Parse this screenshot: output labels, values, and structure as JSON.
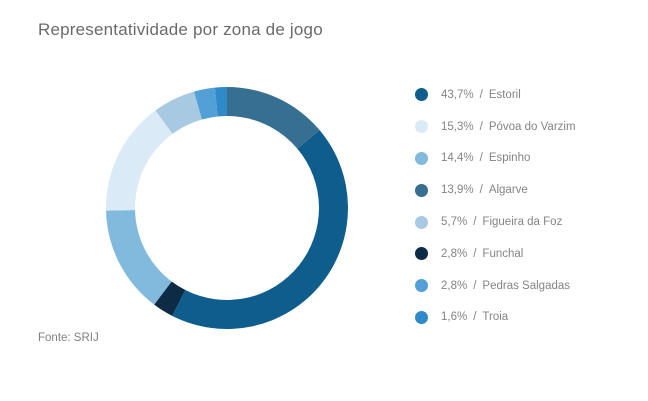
{
  "page": {
    "title": "Representatividade por zona de jogo",
    "source": "Fonte: SRIJ"
  },
  "chart_data": {
    "type": "pie",
    "subtype": "donut",
    "title": "Representatividade por zona de jogo",
    "unit": "%",
    "separator": "/",
    "legend_position": "right",
    "donut_hole_ratio": 0.76,
    "slices": [
      {
        "label": "Estoril",
        "value": 43.7,
        "pct_label": "43,7%",
        "color": "#0E5D8C"
      },
      {
        "label": "Póvoa do Varzim",
        "value": 15.3,
        "pct_label": "15,3%",
        "color": "#DAEBF7"
      },
      {
        "label": "Espinho",
        "value": 14.4,
        "pct_label": "14,4%",
        "color": "#82BADE"
      },
      {
        "label": "Algarve",
        "value": 13.9,
        "pct_label": "13,9%",
        "color": "#366F91"
      },
      {
        "label": "Figueira da Foz",
        "value": 5.7,
        "pct_label": "5,7%",
        "color": "#A8C9E2"
      },
      {
        "label": "Funchal",
        "value": 2.8,
        "pct_label": "2,8%",
        "color": "#0D2B45"
      },
      {
        "label": "Pedras Salgadas",
        "value": 2.8,
        "pct_label": "2,8%",
        "color": "#52A0D6"
      },
      {
        "label": "Troia",
        "value": 1.6,
        "pct_label": "1,6%",
        "color": "#2E8BC7"
      }
    ],
    "clockwise_order_from_top": [
      "Algarve",
      "Estoril",
      "Funchal",
      "Espinho",
      "Póvoa do Varzim",
      "Figueira da Foz",
      "Pedras Salgadas",
      "Troia"
    ]
  }
}
